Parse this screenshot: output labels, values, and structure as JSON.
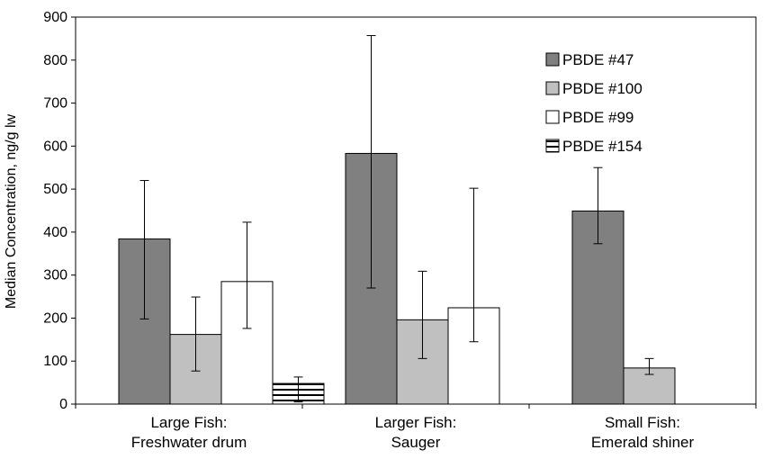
{
  "chart_data": {
    "type": "bar",
    "title": "",
    "xlabel": "",
    "ylabel": "Median Concentration, ng/g lw",
    "ylim": [
      0,
      900
    ],
    "yticks": [
      0,
      100,
      200,
      300,
      400,
      500,
      600,
      700,
      800,
      900
    ],
    "grid": false,
    "legend_position": "top-right",
    "categories": [
      [
        "Large Fish:",
        "Freshwater drum"
      ],
      [
        "Larger Fish:",
        "Sauger"
      ],
      [
        "Small Fish:",
        "Emerald shiner"
      ]
    ],
    "series": [
      {
        "name": "PBDE #47",
        "fill": "#808080",
        "pattern": "solid",
        "values": [
          384,
          583,
          449
        ],
        "error_low": [
          198,
          270,
          373
        ],
        "error_high": [
          520,
          857,
          550
        ]
      },
      {
        "name": "PBDE #100",
        "fill": "#c0c0c0",
        "pattern": "solid",
        "values": [
          162,
          196,
          84
        ],
        "error_low": [
          77,
          106,
          69
        ],
        "error_high": [
          249,
          309,
          106
        ]
      },
      {
        "name": "PBDE #99",
        "fill": "#ffffff",
        "pattern": "solid",
        "values": [
          285,
          224,
          null
        ],
        "error_low": [
          176,
          145,
          null
        ],
        "error_high": [
          423,
          502,
          null
        ]
      },
      {
        "name": "PBDE #154",
        "fill": "#ffffff",
        "pattern": "horizontal-stripes",
        "values": [
          48,
          null,
          null
        ],
        "error_low": [
          5,
          null,
          null
        ],
        "error_high": [
          63,
          null,
          null
        ]
      }
    ]
  }
}
